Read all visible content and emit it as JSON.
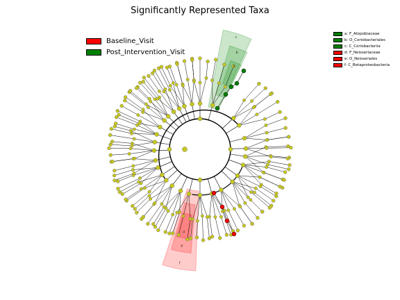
{
  "title": "Significantly Represented Taxa",
  "legend": {
    "groups": [
      {
        "label": "Baseline_Visit",
        "color": "#ff0000"
      },
      {
        "label": "Post_Intervention_Visit",
        "color": "#008000"
      }
    ],
    "taxa": [
      {
        "label": "a: F_Atopobiaceae",
        "color": "#008000"
      },
      {
        "label": "b: O_Coriobacteriales",
        "color": "#008000"
      },
      {
        "label": "c: C_Coriobacteriia",
        "color": "#008000"
      },
      {
        "label": "d: F_Neisseriaceae",
        "color": "#ff0000"
      },
      {
        "label": "e: O_Neisseriales",
        "color": "#ff0000"
      },
      {
        "label": "f: C_Betaproteobacteria",
        "color": "#ff0000"
      }
    ]
  },
  "highlights": [
    {
      "letter": "c",
      "group": "Post_Intervention_Visit"
    },
    {
      "letter": "b",
      "group": "Post_Intervention_Visit"
    },
    {
      "letter": "a",
      "group": "Post_Intervention_Visit"
    },
    {
      "letter": "f",
      "group": "Baseline_Visit"
    },
    {
      "letter": "e",
      "group": "Baseline_Visit"
    },
    {
      "letter": "d",
      "group": "Baseline_Visit"
    }
  ],
  "node_color": "#c8c81e"
}
